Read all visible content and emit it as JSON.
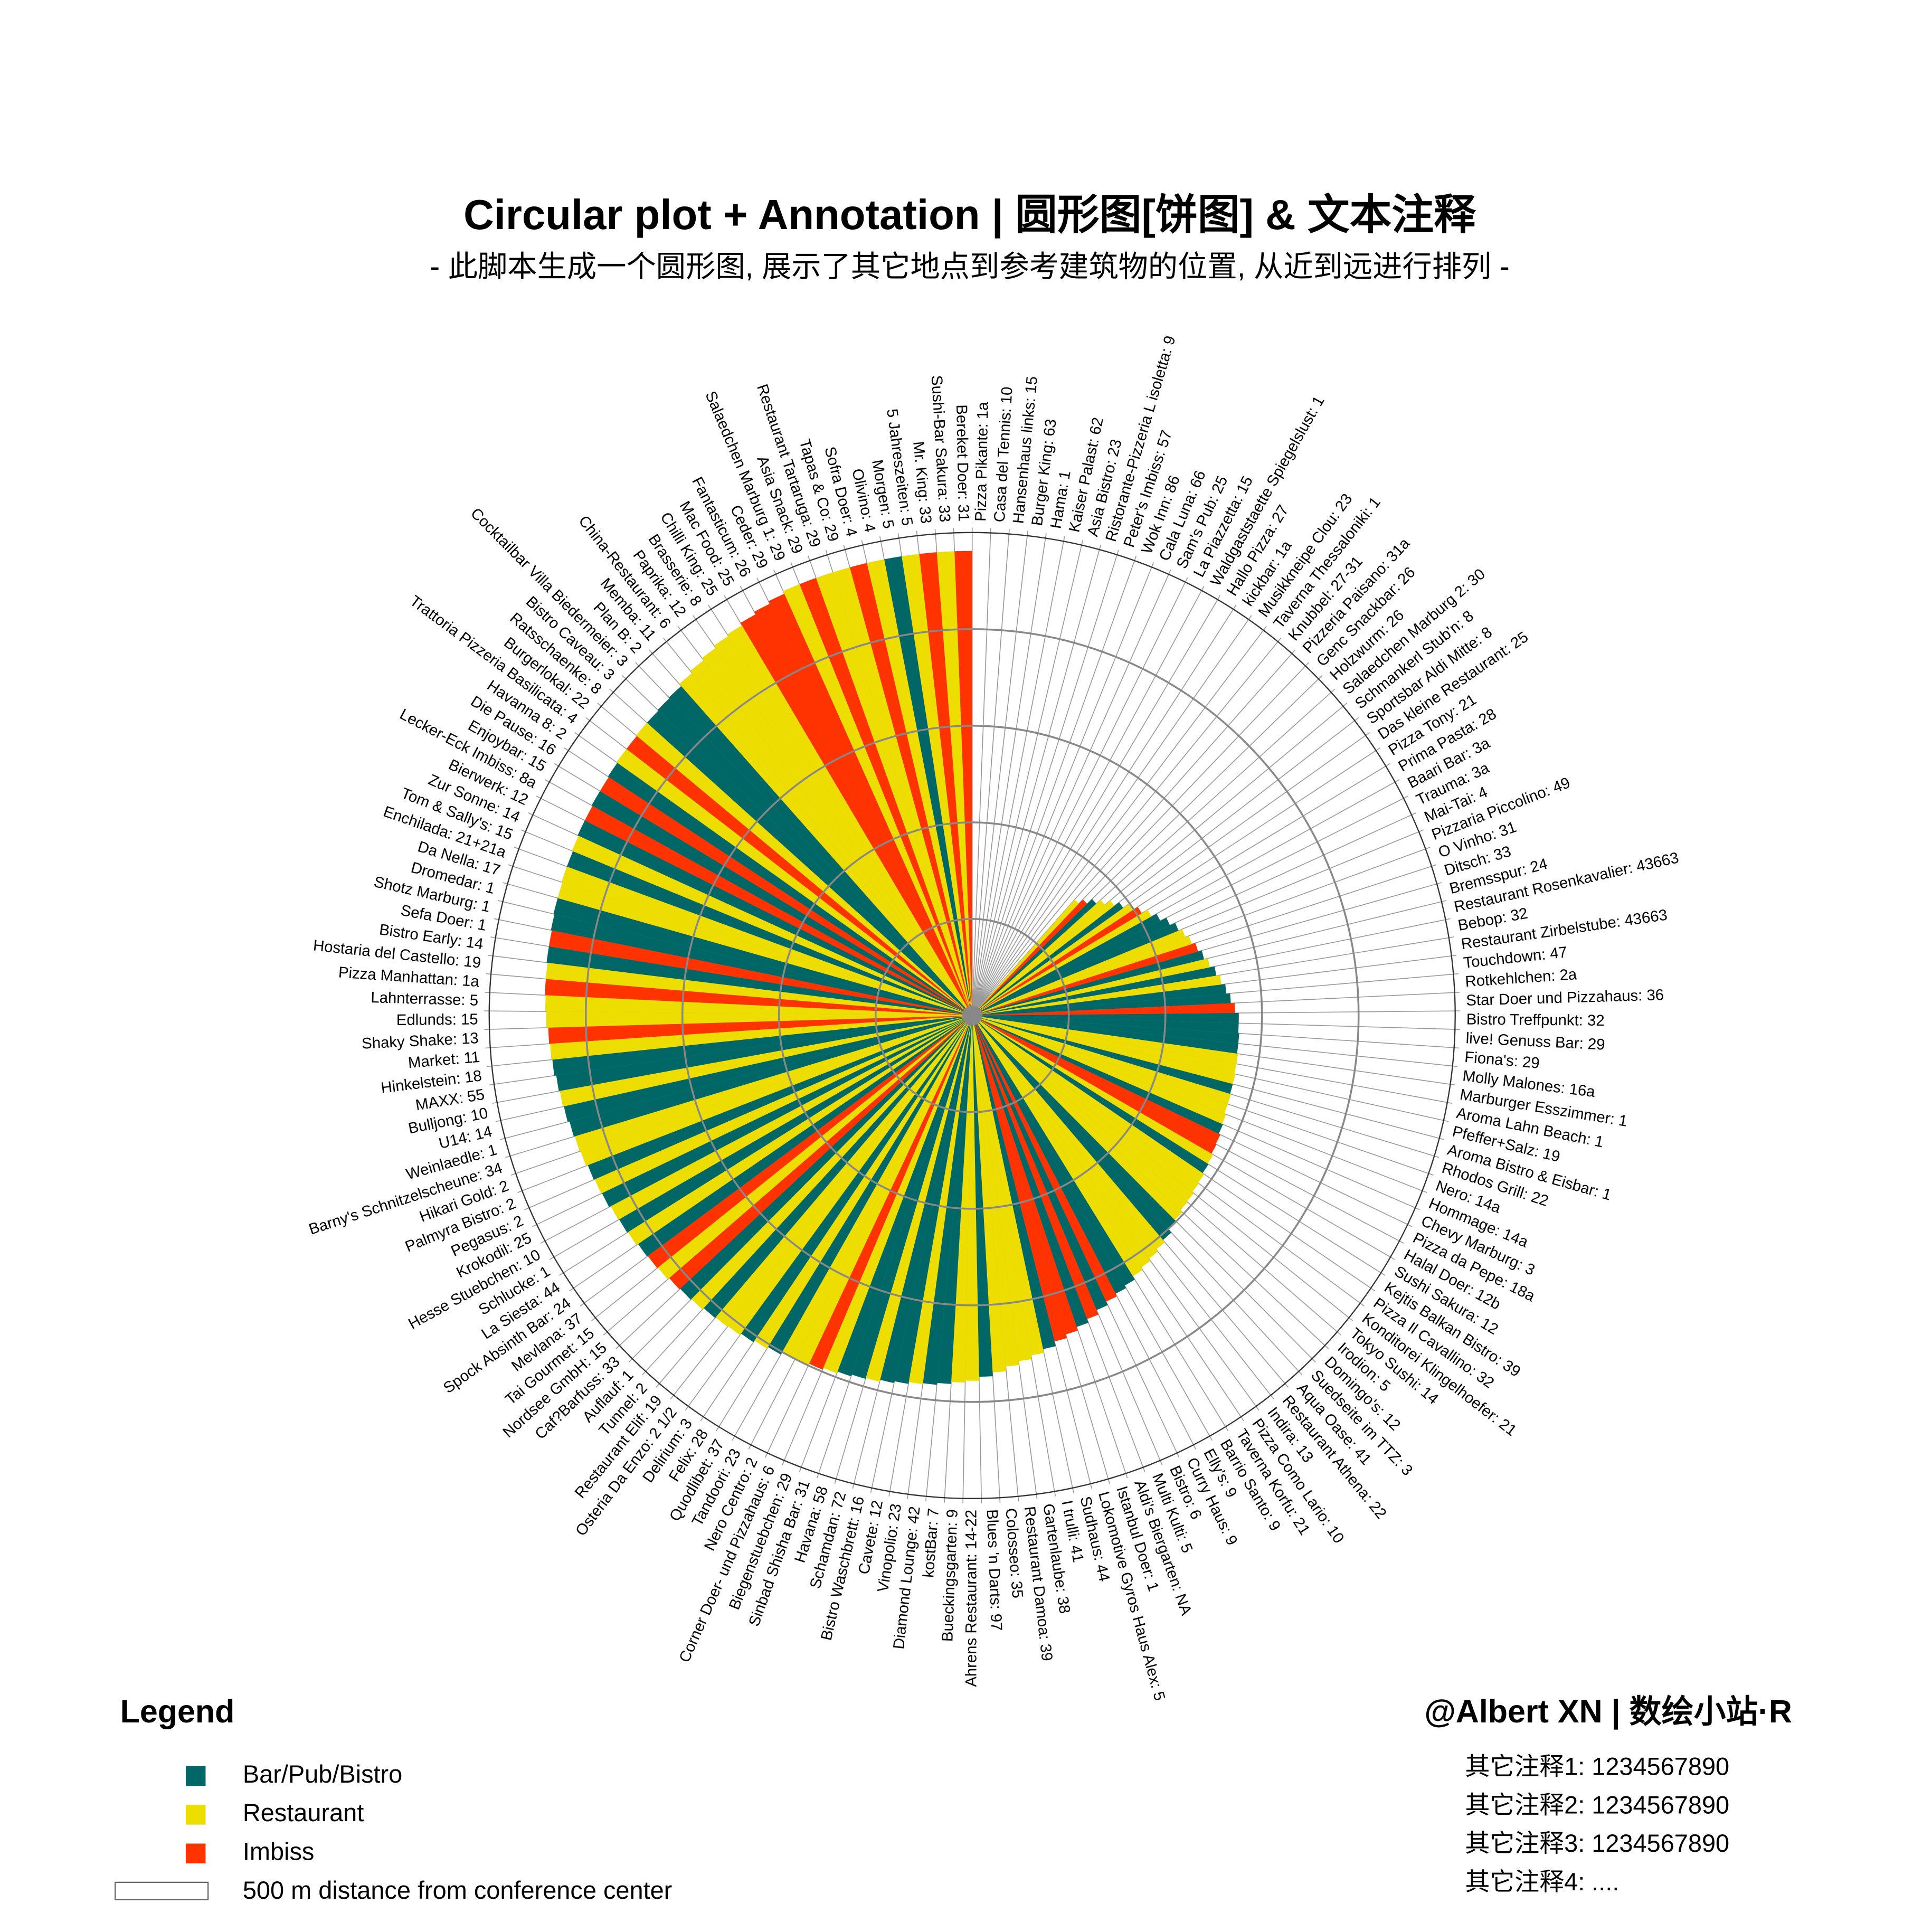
{
  "chart_data": {
    "type": "polar_bar",
    "title": "Circular plot + Annotation | 圆形图[饼图] & 文本注释",
    "subtitle": "- 此脚本生成一个圆形图, 展示了其它地点到参考建筑物的位置, 从近到远进行排列 -",
    "categories": [
      "Pizza Pikante: 1a",
      "Casa del Tennis: 10",
      "Hansenhaus links: 15",
      "Burger King: 63",
      "Hama: 1",
      "Kaiser Palast: 62",
      "Asia Bistro: 23",
      "Ristorante-Pizzeria L isoletta: 9",
      "Peter's Imbiss: 57",
      "Wok Inn: 86",
      "Cala Luna: 66",
      "Sam's Pub: 25",
      "La Piazzetta: 15",
      "Waldgaststaette Spiegelslust: 1",
      "Hallo Pizza: 27",
      "kickbar: 1a",
      "Musikkneipe Clou: 23",
      "Taverna Thessaloniki: 1",
      "Knubbel: 27-31",
      "Pizzeria Paisano: 31a",
      "Genc Snackbar: 26",
      "Holzwurm: 26",
      "Salaedchen Marburg 2: 30",
      "Schmankerl Stub'n: 8",
      "Sportsbar Aldi Mitte: 8",
      "Das kleine Restaurant: 25",
      "Pizza Tony: 21",
      "Prima Pasta: 28",
      "Baari Bar: 3a",
      "Trauma: 3a",
      "Mai-Tai: 4",
      "Pizzaria Piccolino: 49",
      "O Vinho: 31",
      "Ditsch: 33",
      "Bremsspur: 24",
      "Restaurant Rosenkavalier: 43663",
      "Bebop: 32",
      "Restaurant Zirbelstube: 43663",
      "Touchdown: 47",
      "Rotkehlchen: 2a",
      "Star Doer und Pizzahaus: 36",
      "Bistro Treffpunkt: 32",
      "live! Genuss Bar: 29",
      "Fiona's: 29",
      "Molly Malones: 16a",
      "Marburger Esszimmer: 1",
      "Aroma Lahn Beach: 1",
      "Pfeffer+Salz: 19",
      "Aroma Bistro & Eisbar: 1",
      "Rhodos Grill: 22",
      "Nero: 14a",
      "Hommage: 14a",
      "Chevy Marburg: 3",
      "Pizza da Pepe: 18a",
      "Halal Doer: 12b",
      "Sushi Sakura: 12",
      "Kejtis Balkan Bistro: 39",
      "Pizza Il Cavallino: 32",
      "Konditorei Klingelhoefer: 21",
      "Tokyo Sushi: 14",
      "Irodion: 5",
      "Domingo's: 12",
      "Suedseite im TTZ: 3",
      "Aqua Oase: 41",
      "Restaurant Athena: 22",
      "Indira: 13",
      "Pizza Como Lario: 10",
      "Taverna Korfu: 21",
      "Barrio Santo: 9",
      "Elly's: 9",
      "Curry Haus: 9",
      "Bistro: 6",
      "Multi Kulti: 5",
      "Aldi's Biergarten: NA",
      "Istanbul Doer: 1",
      "Lokomotive Gyros Haus Alex: 5",
      "Sudhaus: 44",
      "I trulli: 41",
      "Gartenlaube: 38",
      "Restaurant Damoa: 39",
      "Colosseo: 35",
      "Blues 'n Darts: 97",
      "Ahrens Restaurant: 14-22",
      "Bueckingsgarten: 9",
      "kostBar: 7",
      "Diamond Lounge: 42",
      "Vinopolio: 23",
      "Cavete: 12",
      "Bistro Waschbrett: 16",
      "Schamdan: 72",
      "Havana: 58",
      "Sinbad Shisha Bar: 31",
      "Biegenstuebchen: 29",
      "Corner Doer- und Pizzahaus: 6",
      "Nero Centro: 2",
      "Tandoori: 23",
      "Quodlibet: 37",
      "Felix: 28",
      "Delirium: 3",
      "Osteria Da Enzo: 2 1/2",
      "Restaurant Elif: 19",
      "Tunnel: 2",
      "Auflauf: 1",
      "Caf?Barfuss: 33",
      "Nordsee GmbH: 15",
      "Tai Gourmet: 15",
      "Mevlana: 37",
      "Spock Absinth Bar: 24",
      "La Siesta: 44",
      "Schlucke: 1",
      "Hesse Stuebchen: 10",
      "Krokodil: 25",
      "Pegasus: 2",
      "Palmyra Bistro: 2",
      "Hikari Gold: 2",
      "Barny's Schnitzelscheune: 34",
      "Weinlaedle: 1",
      "U14: 14",
      "Bulljong: 10",
      "MAXX: 55",
      "Hinkelstein: 18",
      "Market: 11",
      "Shaky Shake: 13",
      "Edlunds: 15",
      "Lahnterrasse: 5",
      "Pizza Manhattan: 1a",
      "Hostaria del Castello: 19",
      "Bistro Early: 14",
      "Sefa Doer: 1",
      "Shotz Marburg: 1",
      "Dromedar: 1",
      "Da Nella: 17",
      "Enchilada: 21+21a",
      "Tom & Sally's: 15",
      "Zur Sonne: 14",
      "Bierwerk: 12",
      "Lecker-Eck Imbiss: 8a",
      "Enjoybar: 15",
      "Die Pause: 16",
      "Havanna 8: 2",
      "Trattoria Pizzeria Basilicata: 4",
      "Burgerlokal: 22",
      "Ratsschaenke: 8",
      "Bistro Caveau: 3",
      "Cocktailbar Villa Biedermeier: 3",
      "Plan B: 2",
      "Memba: 11",
      "China-Restaurant: 6",
      "Paprika: 12",
      "Brasserie: 8",
      "Chilli King: 25",
      "Mac Food: 25",
      "Fantasticum: 26",
      "Ceder: 29",
      "Salaedchen Marburg 1: 29",
      "Asia Snack: 29",
      "Restaurant Tartaruga: 29",
      "Tapas & Co: 29",
      "Sofra Doer: 4",
      "Olivino: 4",
      "Morgen: 5",
      "5 Jahreszeiten: 5",
      "Mr. King: 33",
      "Sushi-Bar Sakura: 33",
      "Bereket Doer: 31"
    ],
    "values": [
      null,
      null,
      null,
      null,
      null,
      null,
      null,
      null,
      null,
      null,
      null,
      null,
      null,
      null,
      null,
      null,
      null,
      null,
      null,
      160,
      166,
      173,
      179,
      186,
      192,
      199,
      205,
      212,
      218,
      225,
      231,
      235,
      239,
      243,
      247,
      251,
      256,
      260,
      264,
      268,
      272,
      276,
      276,
      277,
      277,
      278,
      278,
      279,
      279,
      280,
      280,
      282,
      283,
      285,
      286,
      288,
      289,
      291,
      292,
      294,
      295,
      298,
      301,
      305,
      308,
      311,
      314,
      317,
      321,
      324,
      327,
      331,
      336,
      340,
      344,
      348,
      353,
      357,
      361,
      365,
      370,
      374,
      378,
      380,
      382,
      384,
      385,
      387,
      389,
      391,
      392,
      394,
      396,
      398,
      400,
      401,
      403,
      405,
      407,
      409,
      410,
      411,
      413,
      414,
      415,
      417,
      418,
      419,
      421,
      422,
      423,
      425,
      426,
      427,
      429,
      430,
      431,
      433,
      434,
      435,
      437,
      438,
      439,
      441,
      442,
      443,
      443,
      444,
      444,
      445,
      446,
      446,
      447,
      447,
      448,
      449,
      449,
      450,
      450,
      451,
      452,
      452,
      453,
      453,
      454,
      455,
      458,
      461,
      464,
      467,
      469,
      472,
      475,
      478,
      481,
      481,
      481,
      481,
      481,
      481,
      481,
      481,
      481,
      481,
      481
    ],
    "colors": [
      "#f30",
      "#ed0",
      "#ed0",
      "#f30",
      "#ed0",
      "#ed0",
      "#f30",
      "#ed0",
      "#f30",
      "#f30",
      "#ed0",
      "#066",
      "#ed0",
      "#ed0",
      "#f30",
      "#066",
      "#066",
      "#ed0",
      "#066",
      "#ed0",
      "#f30",
      "#066",
      "#ed0",
      "#ed0",
      "#066",
      "#ed0",
      "#f30",
      "#ed0",
      "#066",
      "#066",
      "#066",
      "#ed0",
      "#ed0",
      "#f30",
      "#066",
      "#ed0",
      "#066",
      "#ed0",
      "#066",
      "#066",
      "#f30",
      "#066",
      "#066",
      "#066",
      "#066",
      "#ed0",
      "#ed0",
      "#ed0",
      "#066",
      "#ed0",
      "#ed0",
      "#ed0",
      "#066",
      "#f30",
      "#f30",
      "#ed0",
      "#066",
      "#ed0",
      "#ed0",
      "#ed0",
      "#ed0",
      "#ed0",
      "#066",
      "#066",
      "#ed0",
      "#ed0",
      "#ed0",
      "#ed0",
      "#066",
      "#066",
      "#f30",
      "#066",
      "#f30",
      "#066",
      "#f30",
      "#f30",
      "#066",
      "#ed0",
      "#ed0",
      "#ed0",
      "#ed0",
      "#066",
      "#ed0",
      "#ed0",
      "#066",
      "#066",
      "#ed0",
      "#066",
      "#066",
      "#ed0",
      "#066",
      "#066",
      "#ed0",
      "#f30",
      "#ed0",
      "#ed0",
      "#066",
      "#ed0",
      "#066",
      "#ed0",
      "#ed0",
      "#066",
      "#ed0",
      "#066",
      "#f30",
      "#ed0",
      "#f30",
      "#066",
      "#ed0",
      "#066",
      "#ed0",
      "#066",
      "#ed0",
      "#066",
      "#ed0",
      "#ed0",
      "#066",
      "#066",
      "#ed0",
      "#066",
      "#066",
      "#ed0",
      "#f30",
      "#ed0",
      "#ed0",
      "#f30",
      "#ed0",
      "#066",
      "#f30",
      "#066",
      "#066",
      "#ed0",
      "#ed0",
      "#066",
      "#ed0",
      "#066",
      "#f30",
      "#066",
      "#f30",
      "#066",
      "#ed0",
      "#f30",
      "#ed0",
      "#066",
      "#066",
      "#066",
      "#ed0",
      "#ed0",
      "#ed0",
      "#ed0",
      "#ed0",
      "#f30",
      "#f30",
      "#f30",
      "#ed0",
      "#f30",
      "#ed0",
      "#ed0",
      "#f30",
      "#ed0",
      "#066",
      "#ed0",
      "#f30",
      "#ed0",
      "#f30"
    ],
    "ylim": [
      0,
      500
    ],
    "yticks": [
      0,
      100,
      200,
      300,
      400,
      500
    ],
    "grid": true,
    "legend": {
      "title": "Legend",
      "items": [
        {
          "name": "Bar/Pub/Bistro",
          "color": "#066"
        },
        {
          "name": "Restaurant",
          "color": "#ed0"
        },
        {
          "name": "Imbiss",
          "color": "#f30"
        },
        {
          "name": "500 m distance from conference center",
          "color": "#fff"
        }
      ]
    },
    "credit": "@Albert XN | 数绘小站·R",
    "notes": [
      "其它注释1: 1234567890",
      "其它注释2: 1234567890",
      "其它注释3: 1234567890",
      "其它注释4: ...."
    ]
  }
}
